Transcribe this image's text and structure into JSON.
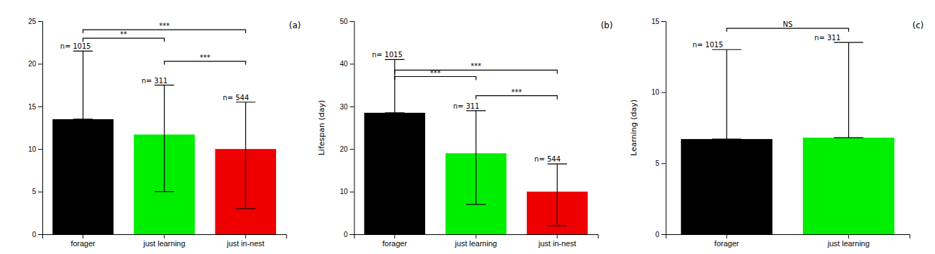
{
  "chart_data": [
    {
      "type": "bar",
      "title": "(a)",
      "categories": [
        "forager",
        "just learning",
        "just in-nest"
      ],
      "values": [
        13.5,
        11.7,
        10.0
      ],
      "colors": [
        "#000000",
        "#00ee00",
        "#ee0000"
      ],
      "error_low": [
        13.5,
        5.0,
        3.0
      ],
      "error_high": [
        21.5,
        17.5,
        15.5
      ],
      "n_labels": [
        "n= 1015",
        "n= 311",
        "n= 544"
      ],
      "annotations": [
        {
          "from": "forager",
          "to": "just learning",
          "y": 23.0,
          "text": "**"
        },
        {
          "from": "forager",
          "to": "just in-nest",
          "y": 24.0,
          "text": "***"
        },
        {
          "from": "just learning",
          "to": "just in-nest",
          "y": 20.3,
          "text": "***"
        }
      ],
      "ylim": [
        0,
        25
      ],
      "yticks": [
        0,
        5,
        10,
        15,
        20,
        25
      ]
    },
    {
      "type": "bar",
      "title": "(b)",
      "ylabel": "Lifespan (day)",
      "categories": [
        "forager",
        "just learning",
        "just in-nest"
      ],
      "values": [
        28.5,
        19.0,
        10.0
      ],
      "colors": [
        "#000000",
        "#00ee00",
        "#ee0000"
      ],
      "error_low": [
        28.5,
        7.0,
        2.0
      ],
      "error_high": [
        41.0,
        29.0,
        16.5
      ],
      "n_labels": [
        "n= 1015",
        "n= 311",
        "n= 544"
      ],
      "annotations": [
        {
          "from": "forager",
          "to": "just learning",
          "y": 37.0,
          "text": "***"
        },
        {
          "from": "forager",
          "to": "just in-nest",
          "y": 38.5,
          "text": "***"
        },
        {
          "from": "just learning",
          "to": "just in-nest",
          "y": 32.5,
          "text": "***"
        }
      ],
      "ylim": [
        0,
        50
      ],
      "yticks": [
        0,
        10,
        20,
        30,
        40,
        50
      ]
    },
    {
      "type": "bar",
      "title": "(c)",
      "ylabel": "Learning (day)",
      "categories": [
        "forager",
        "just learning"
      ],
      "values": [
        6.7,
        6.8
      ],
      "colors": [
        "#000000",
        "#00ee00"
      ],
      "error_low": [
        6.7,
        6.8
      ],
      "error_high": [
        13.0,
        13.5
      ],
      "n_labels": [
        "n= 1015",
        "n= 311"
      ],
      "annotations": [
        {
          "from": "forager",
          "to": "just learning",
          "y": 14.5,
          "text": "NS"
        }
      ],
      "ylim": [
        0,
        15
      ],
      "yticks": [
        0,
        5,
        10,
        15
      ]
    }
  ]
}
